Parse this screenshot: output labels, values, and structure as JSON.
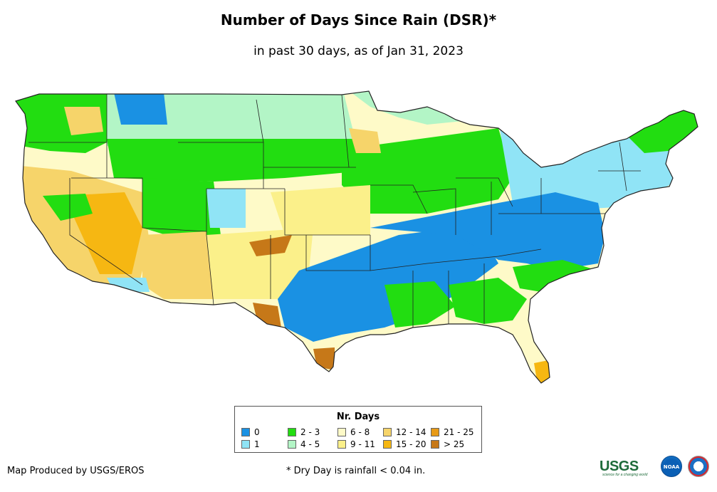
{
  "title": "Number of Days Since Rain (DSR)*",
  "subtitle": "in past 30 days, as of Jan 31, 2023",
  "legend": {
    "title": "Nr. Days",
    "items": [
      {
        "label": "0",
        "color": "#1a91e3"
      },
      {
        "label": "1",
        "color": "#90e4f6"
      },
      {
        "label": "2 - 3",
        "color": "#22dd11"
      },
      {
        "label": "4 - 5",
        "color": "#b3f5c6"
      },
      {
        "label": "6 - 8",
        "color": "#fefac8"
      },
      {
        "label": "9 - 11",
        "color": "#fbf08a"
      },
      {
        "label": "12 - 14",
        "color": "#f6d46a"
      },
      {
        "label": "15 - 20",
        "color": "#f6b712"
      },
      {
        "label": "21 - 25",
        "color": "#e79a17"
      },
      {
        "label": "> 25",
        "color": "#c67818"
      }
    ]
  },
  "footer": {
    "credit": "Map Produced by USGS/EROS",
    "note": "* Dry Day is rainfall < 0.04 in."
  },
  "logos": {
    "usgs": "USGS",
    "usgs_tagline": "science for a changing world",
    "noaa": "NOAA",
    "nws": "National Weather Service"
  }
}
